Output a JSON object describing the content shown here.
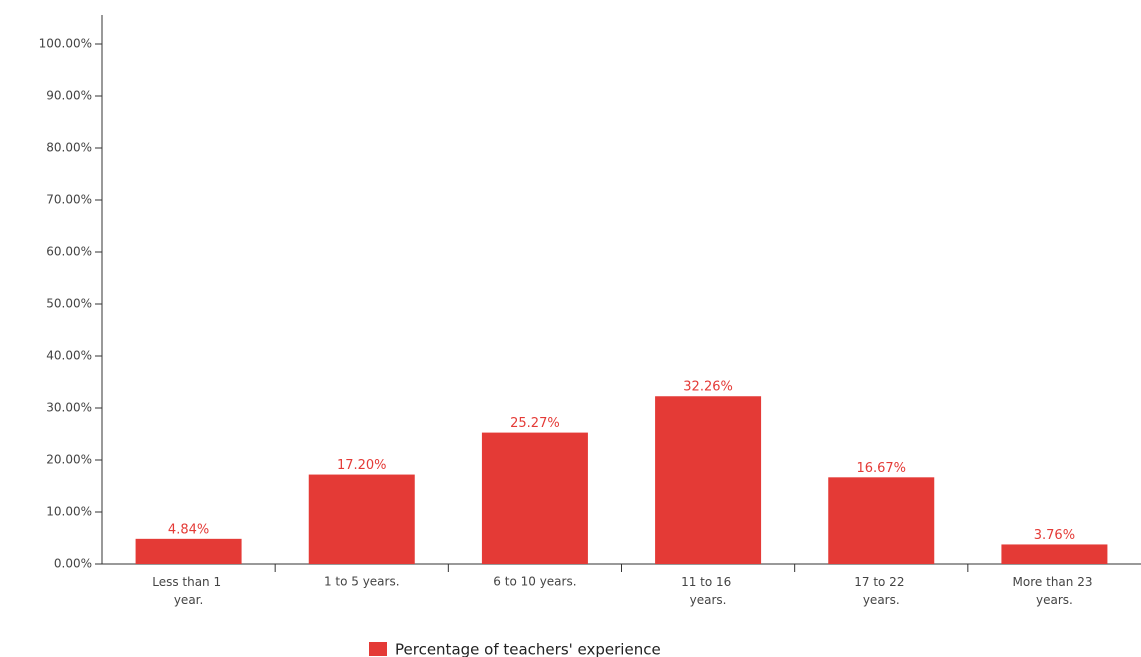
{
  "chart_data": {
    "type": "bar",
    "categories": [
      "Less than 1 year.",
      "1 to 5 years.",
      "6 to 10 years.",
      "11 to 16 years.",
      "17 to 22 years.",
      "More than 23 years."
    ],
    "series": [
      {
        "name": "Percentage of teachers' experience",
        "color": "#e43a36",
        "values": [
          4.84,
          17.2,
          25.27,
          32.26,
          16.67,
          3.76
        ],
        "value_labels": [
          "4.84%",
          "17.20%",
          "25.27%",
          "32.26%",
          "16.67%",
          "3.76%"
        ]
      }
    ],
    "ylim": [
      0,
      100
    ],
    "yticks": [
      {
        "value": 0,
        "label": "0.00%"
      },
      {
        "value": 10,
        "label": "10.00%"
      },
      {
        "value": 20,
        "label": "20.00%"
      },
      {
        "value": 30,
        "label": "30.00%"
      },
      {
        "value": 40,
        "label": "40.00%"
      },
      {
        "value": 50,
        "label": "50.00%"
      },
      {
        "value": 60,
        "label": "60.00%"
      },
      {
        "value": 70,
        "label": "70.00%"
      },
      {
        "value": 80,
        "label": "80.00%"
      },
      {
        "value": 90,
        "label": "90.00%"
      },
      {
        "value": 100,
        "label": "100.00%"
      }
    ],
    "grid": false,
    "legend": "bottom"
  }
}
